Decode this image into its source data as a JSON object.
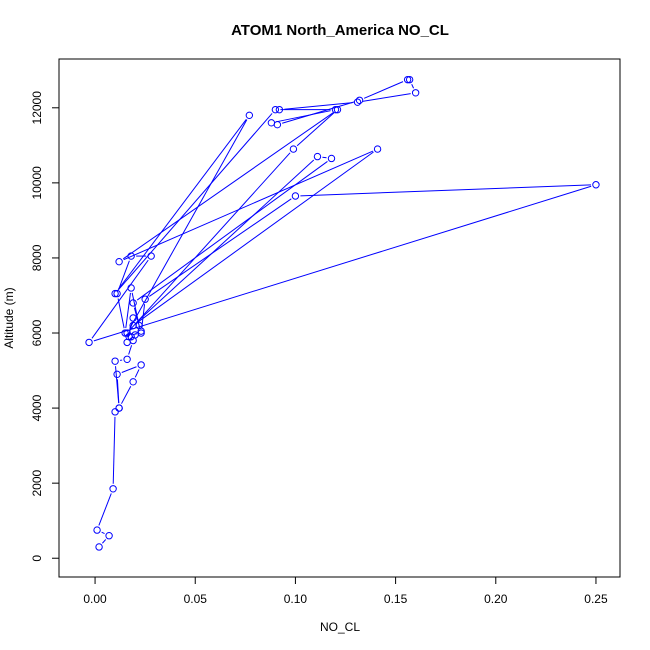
{
  "chart_data": {
    "type": "line",
    "title": "ATOM1 North_America NO_CL",
    "xlabel": "NO_CL",
    "ylabel": "Altitude (m)",
    "xlim": [
      -0.018,
      0.262
    ],
    "ylim": [
      -500,
      13300
    ],
    "xticks": [
      0.0,
      0.05,
      0.1,
      0.15,
      0.2,
      0.25
    ],
    "xtick_labels": [
      "0.00",
      "0.05",
      "0.10",
      "0.15",
      "0.20",
      "0.25"
    ],
    "yticks": [
      0,
      2000,
      4000,
      6000,
      8000,
      10000,
      12000
    ],
    "ytick_labels": [
      "0",
      "2000",
      "4000",
      "6000",
      "8000",
      "10000",
      "12000"
    ],
    "grid": false,
    "legend": "none",
    "line_color": "#0000ff",
    "marker": "open-circle",
    "series": [
      {
        "x": [
          0.002,
          0.007,
          0.001,
          0.009,
          0.01,
          0.012,
          0.019,
          0.023,
          0.011,
          0.012,
          0.01,
          0.016,
          0.019,
          0.02,
          0.018,
          0.023,
          0.017,
          0.016,
          0.019,
          0.022,
          0.018,
          0.015,
          0.011,
          0.018,
          0.028,
          -0.003,
          0.25,
          0.1,
          0.025,
          0.023,
          0.019,
          0.118,
          0.111,
          0.019,
          0.141,
          0.012,
          0.121,
          0.099,
          0.016,
          0.077,
          0.01,
          0.09,
          0.12,
          0.088,
          0.091,
          0.132,
          0.156,
          0.157,
          0.16,
          0.131,
          0.092
        ],
        "y": [
          300,
          600,
          750,
          1850,
          3900,
          4000,
          4700,
          5150,
          4900,
          4000,
          5250,
          5300,
          5800,
          5950,
          5900,
          6050,
          5900,
          5750,
          6400,
          6200,
          7200,
          6000,
          7050,
          8050,
          8050,
          5750,
          9950,
          9650,
          6900,
          6000,
          6800,
          10650,
          10700,
          6200,
          10900,
          7900,
          11950,
          10900,
          6000,
          11800,
          7050,
          11950,
          11950,
          11600,
          11550,
          12200,
          12750,
          12750,
          12400,
          12150,
          11950
        ]
      }
    ]
  }
}
